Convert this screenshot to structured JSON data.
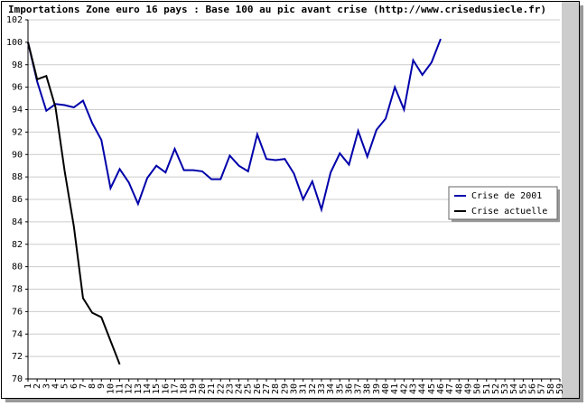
{
  "chart_data": {
    "type": "line",
    "title": "Importations Zone euro 16 pays : Base 100 au pic avant crise (http://www.crisedusiecle.fr)",
    "categories": [
      "1",
      "2",
      "3",
      "4",
      "5",
      "6",
      "7",
      "8",
      "9",
      "10",
      "11",
      "12",
      "13",
      "14",
      "15",
      "16",
      "17",
      "18",
      "19",
      "20",
      "21",
      "22",
      "23",
      "24",
      "25",
      "26",
      "27",
      "28",
      "29",
      "30",
      "31",
      "32",
      "33",
      "34",
      "35",
      "36",
      "37",
      "38",
      "39",
      "40",
      "41",
      "42",
      "43",
      "44",
      "45",
      "46",
      "47",
      "48",
      "49",
      "50",
      "51",
      "52",
      "53",
      "54",
      "55",
      "56",
      "57",
      "58",
      "59"
    ],
    "series": [
      {
        "name": "Crise de 2001",
        "color": "#0000aa",
        "values": [
          100,
          96.5,
          93.9,
          94.5,
          94.4,
          94.2,
          94.8,
          92.8,
          91.3,
          87.0,
          88.7,
          87.5,
          85.6,
          87.9,
          89.0,
          88.4,
          90.5,
          88.6,
          88.6,
          88.5,
          87.8,
          87.8,
          89.9,
          89.0,
          88.5,
          91.8,
          89.6,
          89.5,
          89.6,
          88.3,
          86.0,
          87.6,
          85.1,
          88.4,
          90.1,
          89.1,
          92.1,
          89.8,
          92.2,
          93.2,
          96.0,
          94.0,
          98.4,
          97.1,
          98.2,
          100.3,
          null,
          null,
          null,
          null,
          null,
          null,
          null,
          null,
          null,
          null,
          null,
          null,
          null
        ]
      },
      {
        "name": "Crise actuelle",
        "color": "#000000",
        "values": [
          100,
          96.7,
          97.0,
          94.2,
          88.5,
          83.6,
          77.2,
          75.9,
          75.5,
          73.4,
          71.3,
          null,
          null,
          null,
          null,
          null,
          null,
          null,
          null,
          null,
          null,
          null,
          null,
          null,
          null,
          null,
          null,
          null,
          null,
          null,
          null,
          null,
          null,
          null,
          null,
          null,
          null,
          null,
          null,
          null,
          null,
          null,
          null,
          null,
          null,
          null,
          null,
          null,
          null,
          null,
          null,
          null,
          null,
          null,
          null,
          null,
          null,
          null,
          null
        ]
      }
    ],
    "ylim": [
      70,
      102
    ],
    "yticks": [
      70,
      72,
      74,
      76,
      78,
      80,
      82,
      84,
      86,
      88,
      90,
      92,
      94,
      96,
      98,
      100,
      102
    ],
    "grid": true,
    "legend_position": "right"
  }
}
